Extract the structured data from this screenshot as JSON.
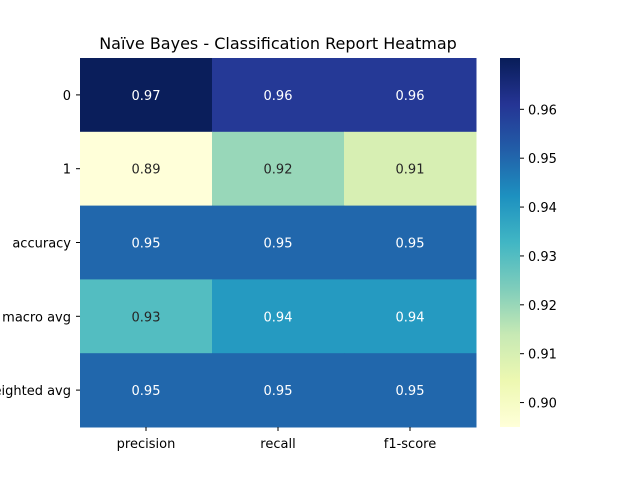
{
  "chart_data": {
    "type": "heatmap",
    "title": "Naïve Bayes - Classification Report Heatmap",
    "rows": [
      "0",
      "1",
      "accuracy",
      "macro avg",
      "weighted avg"
    ],
    "columns": [
      "precision",
      "recall",
      "f1-score"
    ],
    "values": [
      [
        0.97,
        0.96,
        0.96
      ],
      [
        0.89,
        0.92,
        0.91
      ],
      [
        0.95,
        0.95,
        0.95
      ],
      [
        0.93,
        0.94,
        0.94
      ],
      [
        0.95,
        0.95,
        0.95
      ]
    ],
    "value_labels": [
      [
        "0.97",
        "0.96",
        "0.96"
      ],
      [
        "0.89",
        "0.92",
        "0.91"
      ],
      [
        "0.95",
        "0.95",
        "0.95"
      ],
      [
        "0.93",
        "0.94",
        "0.94"
      ],
      [
        "0.95",
        "0.95",
        "0.95"
      ]
    ],
    "colormap": "YlGnBu",
    "colorbar": {
      "range": [
        0.895,
        0.9705
      ],
      "ticks": [
        "0.90",
        "0.91",
        "0.92",
        "0.93",
        "0.94",
        "0.95",
        "0.96"
      ]
    }
  }
}
